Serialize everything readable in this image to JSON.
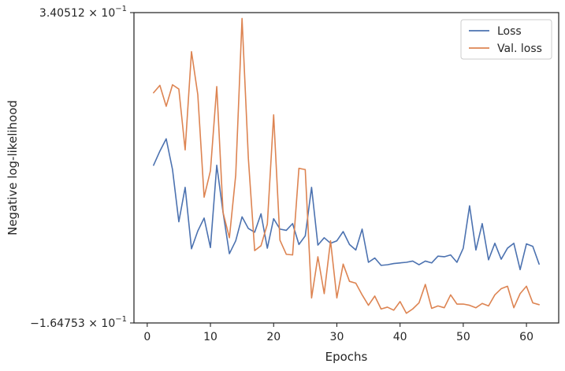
{
  "chart_data": {
    "type": "line",
    "title": "",
    "xlabel": "Epochs",
    "ylabel": "Negative log-likelihood",
    "xlim": [
      -2.1,
      65.1
    ],
    "ylim": [
      -0.164753,
      0.340512
    ],
    "y_scale": "symlog",
    "x_ticks": [
      0,
      10,
      20,
      30,
      40,
      50,
      60
    ],
    "x_tick_labels": [
      "0",
      "10",
      "20",
      "30",
      "40",
      "50",
      "60"
    ],
    "y_tick_labels": [
      {
        "base": "3.40512",
        "exp": "−1"
      },
      {
        "base": "−1.64753",
        "exp": "−1"
      }
    ],
    "grid": false,
    "legend_position": "top-right",
    "x": [
      1,
      2,
      3,
      4,
      5,
      6,
      7,
      8,
      9,
      10,
      11,
      12,
      13,
      14,
      15,
      16,
      17,
      18,
      19,
      20,
      21,
      22,
      23,
      24,
      25,
      26,
      27,
      28,
      29,
      30,
      31,
      32,
      33,
      34,
      35,
      36,
      37,
      38,
      39,
      40,
      41,
      42,
      43,
      44,
      45,
      46,
      47,
      48,
      49,
      50,
      51,
      52,
      53,
      54,
      55,
      56,
      57,
      58,
      59,
      60,
      61,
      62
    ],
    "series": [
      {
        "name": "Loss",
        "color": "#4c72b0",
        "values": [
          0.092,
          0.115,
          0.135,
          0.085,
          0.0,
          0.056,
          -0.044,
          -0.015,
          0.006,
          -0.042,
          0.092,
          0.015,
          -0.052,
          -0.031,
          0.008,
          -0.011,
          -0.017,
          0.013,
          -0.043,
          0.005,
          -0.012,
          -0.014,
          -0.003,
          -0.037,
          -0.023,
          0.056,
          -0.038,
          -0.026,
          -0.035,
          -0.031,
          -0.016,
          -0.037,
          -0.046,
          -0.012,
          -0.066,
          -0.059,
          -0.071,
          -0.07,
          -0.068,
          -0.067,
          -0.066,
          -0.064,
          -0.07,
          -0.064,
          -0.067,
          -0.056,
          -0.057,
          -0.054,
          -0.066,
          -0.043,
          0.026,
          -0.046,
          -0.003,
          -0.062,
          -0.035,
          -0.061,
          -0.043,
          -0.035,
          -0.078,
          -0.036,
          -0.04,
          -0.069
        ]
      },
      {
        "name": "Val. loss",
        "color": "#dd8452",
        "values": [
          0.21,
          0.222,
          0.188,
          0.223,
          0.216,
          0.117,
          0.277,
          0.207,
          0.04,
          0.083,
          0.22,
          0.015,
          -0.026,
          0.076,
          0.331,
          0.103,
          -0.047,
          -0.039,
          -0.004,
          0.174,
          -0.03,
          -0.053,
          -0.054,
          0.087,
          0.085,
          -0.124,
          -0.057,
          -0.117,
          -0.031,
          -0.124,
          -0.069,
          -0.097,
          -0.1,
          -0.119,
          -0.136,
          -0.121,
          -0.142,
          -0.139,
          -0.144,
          -0.13,
          -0.149,
          -0.142,
          -0.132,
          -0.102,
          -0.141,
          -0.137,
          -0.14,
          -0.119,
          -0.134,
          -0.134,
          -0.136,
          -0.14,
          -0.133,
          -0.137,
          -0.119,
          -0.109,
          -0.105,
          -0.14,
          -0.117,
          -0.105,
          -0.132,
          -0.135
        ]
      }
    ]
  }
}
